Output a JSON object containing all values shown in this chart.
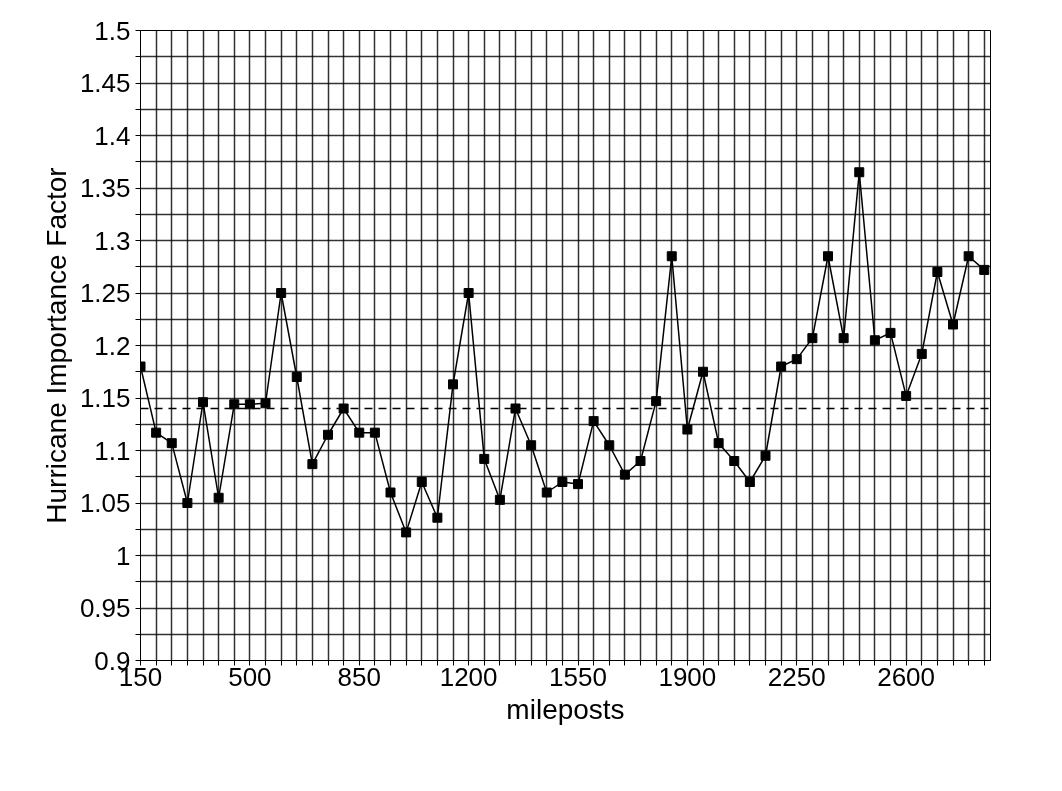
{
  "chart_data": {
    "type": "line",
    "xlabel": "mileposts",
    "ylabel": "Hurricane Importance Factor",
    "x": [
      150,
      200,
      250,
      300,
      350,
      400,
      450,
      500,
      550,
      600,
      650,
      700,
      750,
      800,
      850,
      900,
      950,
      1000,
      1050,
      1100,
      1150,
      1200,
      1250,
      1300,
      1350,
      1400,
      1450,
      1500,
      1550,
      1600,
      1650,
      1700,
      1750,
      1800,
      1850,
      1900,
      1950,
      2000,
      2050,
      2100,
      2150,
      2200,
      2250,
      2300,
      2350,
      2400,
      2450,
      2500,
      2550,
      2600,
      2650,
      2700,
      2750,
      2800,
      2850
    ],
    "series": [
      {
        "color": "#000000",
        "values": [
          1.18,
          1.117,
          1.107,
          1.05,
          1.146,
          1.055,
          1.144,
          1.144,
          1.145,
          1.25,
          1.17,
          1.087,
          1.115,
          1.14,
          1.117,
          1.117,
          1.06,
          1.022,
          1.07,
          1.036,
          1.163,
          1.25,
          1.092,
          1.053,
          1.14,
          1.105,
          1.06,
          1.07,
          1.068,
          1.128,
          1.105,
          1.077,
          1.09,
          1.147,
          1.285,
          1.12,
          1.175,
          1.107,
          1.09,
          1.07,
          1.095,
          1.18,
          1.187,
          1.207,
          1.285,
          1.207,
          1.365,
          1.205,
          1.212,
          1.152,
          1.192,
          1.27,
          1.22,
          1.285,
          1.272
        ]
      }
    ],
    "marker": "square",
    "line_style": "solid",
    "grid": true,
    "ref_lines": [
      {
        "axis": "y",
        "value": 1.14,
        "color": "#000000",
        "line_style": "dashed"
      }
    ],
    "xlim": [
      150,
      2870
    ],
    "ylim": [
      0.9,
      1.5
    ],
    "xticks": [
      150,
      {
        "value": 200,
        "label": null
      },
      {
        "value": 250,
        "label": null
      },
      {
        "value": 300,
        "label": null
      },
      {
        "value": 350,
        "label": null
      },
      {
        "value": 400,
        "label": null
      },
      {
        "value": 450,
        "label": null
      },
      500,
      {
        "value": 550,
        "label": null
      },
      {
        "value": 600,
        "label": null
      },
      {
        "value": 650,
        "label": null
      },
      {
        "value": 700,
        "label": null
      },
      {
        "value": 750,
        "label": null
      },
      {
        "value": 800,
        "label": null
      },
      850,
      {
        "value": 900,
        "label": null
      },
      {
        "value": 950,
        "label": null
      },
      {
        "value": 1000,
        "label": null
      },
      {
        "value": 1050,
        "label": null
      },
      {
        "value": 1100,
        "label": null
      },
      {
        "value": 1150,
        "label": null
      },
      1200,
      {
        "value": 1250,
        "label": null
      },
      {
        "value": 1300,
        "label": null
      },
      {
        "value": 1350,
        "label": null
      },
      {
        "value": 1400,
        "label": null
      },
      {
        "value": 1450,
        "label": null
      },
      {
        "value": 1500,
        "label": null
      },
      1550,
      {
        "value": 1600,
        "label": null
      },
      {
        "value": 1650,
        "label": null
      },
      {
        "value": 1700,
        "label": null
      },
      {
        "value": 1750,
        "label": null
      },
      {
        "value": 1800,
        "label": null
      },
      {
        "value": 1850,
        "label": null
      },
      1900,
      {
        "value": 1950,
        "label": null
      },
      {
        "value": 2000,
        "label": null
      },
      {
        "value": 2050,
        "label": null
      },
      {
        "value": 2100,
        "label": null
      },
      {
        "value": 2150,
        "label": null
      },
      {
        "value": 2200,
        "label": null
      },
      2250,
      {
        "value": 2300,
        "label": null
      },
      {
        "value": 2350,
        "label": null
      },
      {
        "value": 2400,
        "label": null
      },
      {
        "value": 2450,
        "label": null
      },
      {
        "value": 2500,
        "label": null
      },
      {
        "value": 2550,
        "label": null
      },
      2600,
      {
        "value": 2650,
        "label": null
      },
      {
        "value": 2700,
        "label": null
      },
      {
        "value": 2750,
        "label": null
      },
      {
        "value": 2800,
        "label": null
      },
      {
        "value": 2850,
        "label": null
      }
    ],
    "yticks": [
      0.9,
      {
        "value": 0.925,
        "label": null
      },
      0.95,
      {
        "value": 0.975,
        "label": null
      },
      1,
      {
        "value": 1.025,
        "label": null
      },
      1.05,
      {
        "value": 1.075,
        "label": null
      },
      1.1,
      {
        "value": 1.125,
        "label": null
      },
      1.15,
      {
        "value": 1.175,
        "label": null
      },
      1.2,
      {
        "value": 1.225,
        "label": null
      },
      1.25,
      {
        "value": 1.275,
        "label": null
      },
      1.3,
      {
        "value": 1.325,
        "label": null
      },
      1.35,
      {
        "value": 1.375,
        "label": null
      },
      1.4,
      {
        "value": 1.425,
        "label": null
      },
      1.45,
      {
        "value": 1.475,
        "label": null
      },
      1.5
    ]
  }
}
